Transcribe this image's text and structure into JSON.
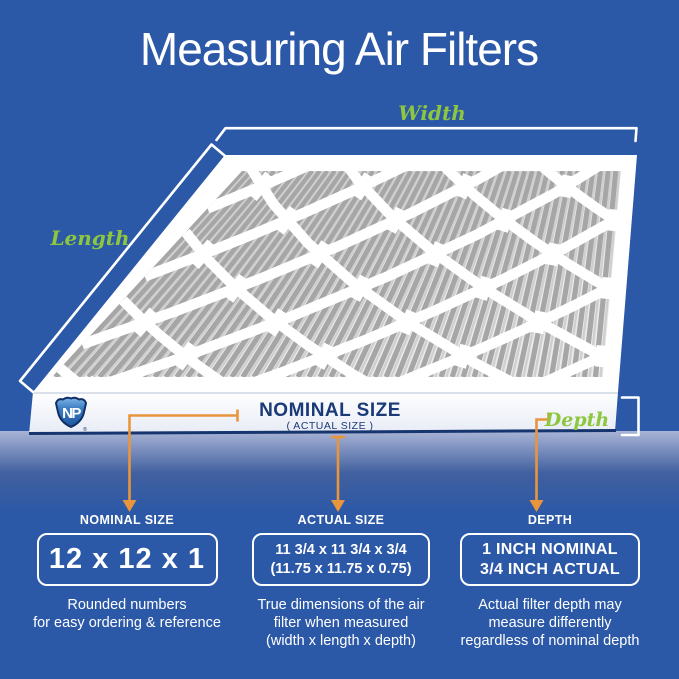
{
  "title": "Measuring Air Filters",
  "diagram": {
    "width_label": "Width",
    "length_label": "Length",
    "depth_label": "Depth",
    "frame_label": "NOMINAL SIZE",
    "frame_sublabel": "( ACTUAL SIZE )",
    "logo_text": "NP",
    "logo_registered_mark": "®"
  },
  "sections": [
    {
      "heading": "NOMINAL SIZE",
      "value_lines": [
        "12 x 12 x 1"
      ],
      "description_lines": [
        "Rounded numbers",
        "for easy ordering & reference"
      ]
    },
    {
      "heading": "ACTUAL SIZE",
      "value_lines": [
        "11 3/4 x 11 3/4 x 3/4",
        "(11.75 x 11.75 x 0.75)"
      ],
      "description_lines": [
        "True dimensions of the air",
        "filter when measured",
        "(width x length x depth)"
      ]
    },
    {
      "heading": "DEPTH",
      "value_lines": [
        "1 INCH NOMINAL",
        "3/4 INCH ACTUAL"
      ],
      "description_lines": [
        "Actual filter depth may",
        "measure differently",
        "regardless of nominal depth"
      ]
    }
  ],
  "colors": {
    "background": "#2b58a7",
    "accent_green": "#8dc63f",
    "accent_orange": "#e8953c",
    "navy_text": "#1a3a78",
    "frame_line_navy": "#16356f",
    "white": "#ffffff",
    "shield_blue": "#1d5fae",
    "media_bg": "#ebebeb",
    "pleat_gray": "#a6a6a6",
    "pleat_light": "#cfcfcf"
  }
}
